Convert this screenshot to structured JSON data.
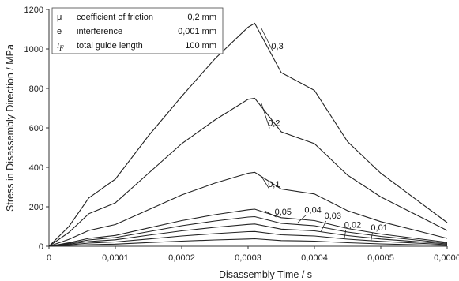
{
  "chart_data": {
    "type": "line",
    "title": "",
    "xlabel": "Disassembly Time / s",
    "ylabel": "Stress in Disassembly Direction / MPa",
    "xlim": [
      0,
      0.0006
    ],
    "ylim": [
      0,
      1200
    ],
    "x_ticks": [
      "0",
      "0,0001",
      "0,0002",
      "0,0003",
      "0,0004",
      "0,0005",
      "0,0006"
    ],
    "y_ticks": [
      "0",
      "200",
      "400",
      "600",
      "800",
      "1000",
      "1200"
    ],
    "grid": false,
    "legend": {
      "placement": "top-left",
      "rows": [
        {
          "symbol": "μ",
          "description": "coefficient of friction",
          "value": "0,2 mm"
        },
        {
          "symbol": "e",
          "description": "interference",
          "value": "0,001 mm"
        },
        {
          "symbol": "l",
          "subscript": "F",
          "description": "total guide length",
          "value": "100 mm"
        }
      ]
    },
    "series": [
      {
        "name": "0,3",
        "x": [
          0,
          3e-05,
          6e-05,
          0.0001,
          0.00015,
          0.0002,
          0.00025,
          0.0003,
          0.00031,
          0.00035,
          0.0004,
          0.00045,
          0.0005,
          0.0006
        ],
        "y": [
          0,
          100,
          245,
          340,
          560,
          760,
          950,
          1110,
          1130,
          880,
          790,
          530,
          370,
          120
        ]
      },
      {
        "name": "0,2",
        "x": [
          0,
          3e-05,
          6e-05,
          0.0001,
          0.00015,
          0.0002,
          0.00025,
          0.0003,
          0.00031,
          0.00035,
          0.0004,
          0.00045,
          0.0005,
          0.0006
        ],
        "y": [
          0,
          70,
          165,
          220,
          370,
          520,
          640,
          745,
          750,
          580,
          520,
          360,
          250,
          80
        ]
      },
      {
        "name": "0,1",
        "x": [
          0,
          3e-05,
          6e-05,
          0.0001,
          0.00015,
          0.0002,
          0.00025,
          0.0003,
          0.00031,
          0.00035,
          0.0004,
          0.00045,
          0.0005,
          0.0006
        ],
        "y": [
          0,
          35,
          80,
          110,
          185,
          260,
          320,
          370,
          375,
          290,
          265,
          180,
          125,
          40
        ]
      },
      {
        "name": "0,05",
        "x": [
          0,
          3e-05,
          6e-05,
          0.0001,
          0.00015,
          0.0002,
          0.00025,
          0.0003,
          0.00031,
          0.00035,
          0.0004,
          0.00045,
          0.0005,
          0.0006
        ],
        "y": [
          0,
          18,
          40,
          55,
          93,
          130,
          160,
          185,
          188,
          145,
          130,
          90,
          62,
          20
        ]
      },
      {
        "name": "0,04",
        "x": [
          0,
          3e-05,
          6e-05,
          0.0001,
          0.00015,
          0.0002,
          0.00025,
          0.0003,
          0.00031,
          0.00035,
          0.0004,
          0.00045,
          0.0005,
          0.0006
        ],
        "y": [
          0,
          15,
          32,
          44,
          74,
          104,
          128,
          148,
          150,
          116,
          104,
          72,
          50,
          16
        ]
      },
      {
        "name": "0,03",
        "x": [
          0,
          3e-05,
          6e-05,
          0.0001,
          0.00015,
          0.0002,
          0.00025,
          0.0003,
          0.00031,
          0.00035,
          0.0004,
          0.00045,
          0.0005,
          0.0006
        ],
        "y": [
          0,
          11,
          24,
          33,
          56,
          78,
          96,
          111,
          113,
          87,
          78,
          54,
          37,
          12
        ]
      },
      {
        "name": "0,02",
        "x": [
          0,
          3e-05,
          6e-05,
          0.0001,
          0.00015,
          0.0002,
          0.00025,
          0.0003,
          0.00031,
          0.00035,
          0.0004,
          0.00045,
          0.0005,
          0.0006
        ],
        "y": [
          0,
          7,
          16,
          22,
          37,
          52,
          64,
          74,
          75,
          58,
          52,
          36,
          25,
          8
        ]
      },
      {
        "name": "0,01",
        "x": [
          0,
          3e-05,
          6e-05,
          0.0001,
          0.00015,
          0.0002,
          0.00025,
          0.0003,
          0.00031,
          0.00035,
          0.0004,
          0.00045,
          0.0005,
          0.0006
        ],
        "y": [
          0,
          4,
          8,
          11,
          19,
          26,
          32,
          37,
          38,
          29,
          26,
          18,
          12,
          4
        ]
      }
    ]
  }
}
